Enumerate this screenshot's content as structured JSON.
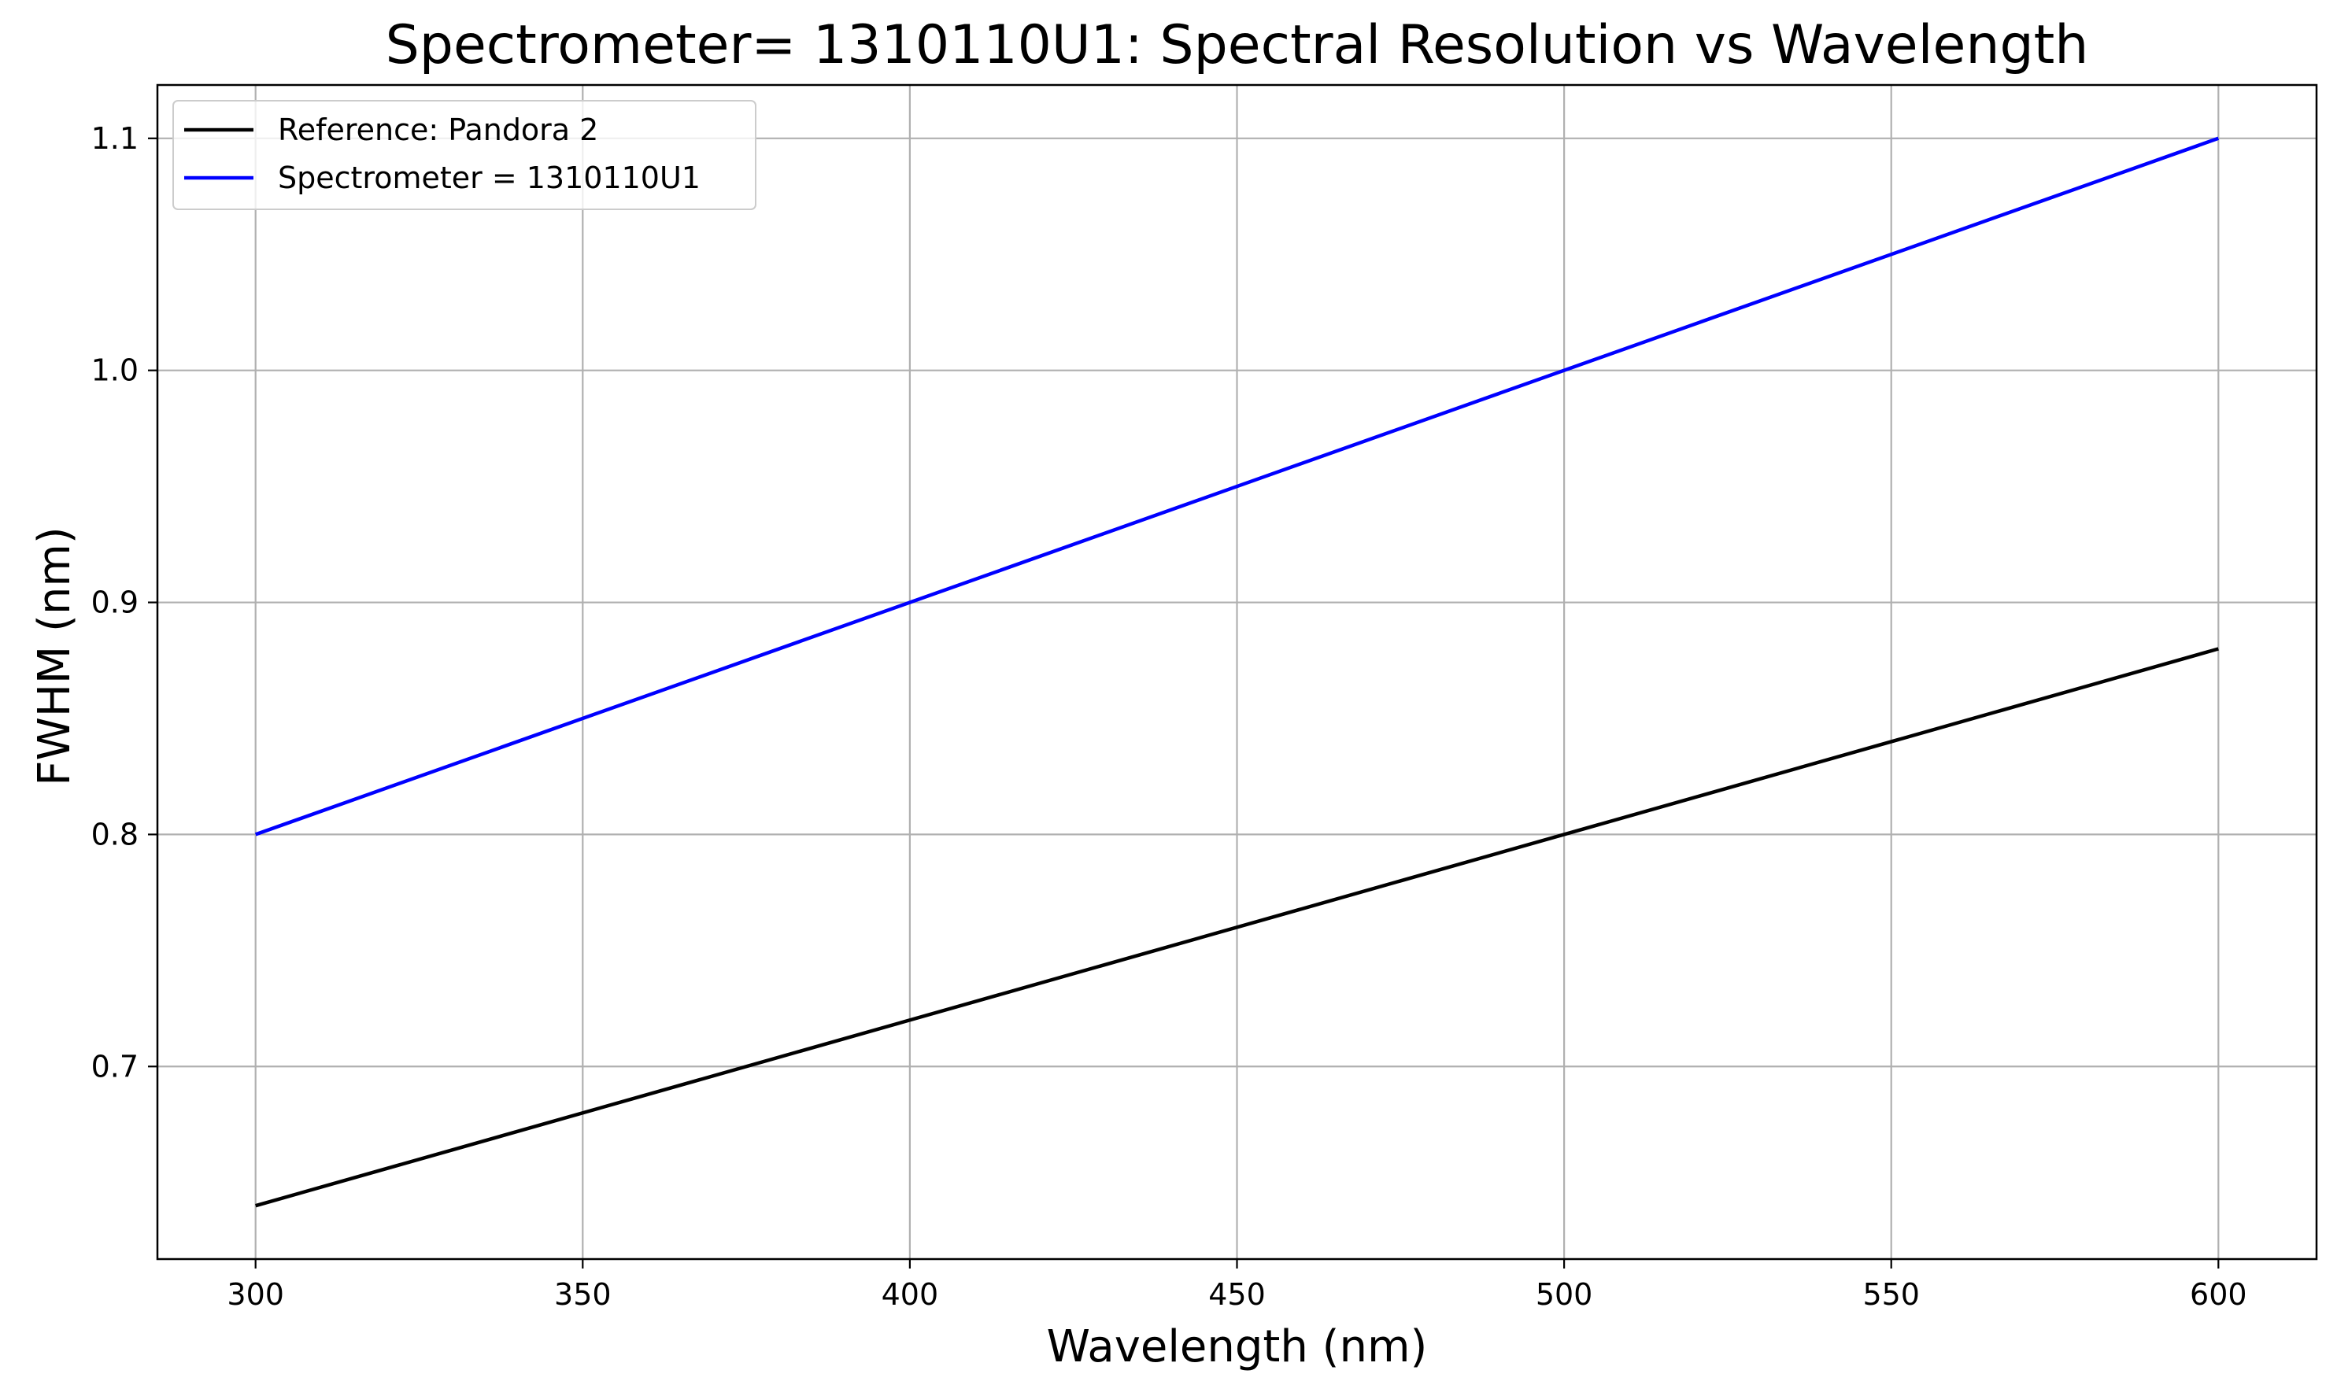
{
  "chart_data": {
    "type": "line",
    "title": "Spectrometer= 1310110U1: Spectral Resolution vs Wavelength",
    "xlabel": "Wavelength (nm)",
    "ylabel": "FWHM (nm)",
    "xlim": [
      285,
      615
    ],
    "ylim": [
      0.617,
      1.123
    ],
    "x_ticks": [
      300,
      350,
      400,
      450,
      500,
      550,
      600
    ],
    "x_tick_labels": [
      "300",
      "350",
      "400",
      "450",
      "500",
      "550",
      "600"
    ],
    "y_ticks": [
      0.7,
      0.8,
      0.9,
      1.0,
      1.1
    ],
    "y_tick_labels": [
      "0.7",
      "0.8",
      "0.9",
      "1.0",
      "1.1"
    ],
    "grid": true,
    "legend_position": "top-left",
    "series": [
      {
        "name": "Reference: Pandora 2",
        "color": "#000000",
        "x": [
          300,
          600
        ],
        "y": [
          0.64,
          0.88
        ]
      },
      {
        "name": "Spectrometer = 1310110U1",
        "color": "#0000ff",
        "x": [
          300,
          600
        ],
        "y": [
          0.8,
          1.1
        ]
      }
    ]
  }
}
